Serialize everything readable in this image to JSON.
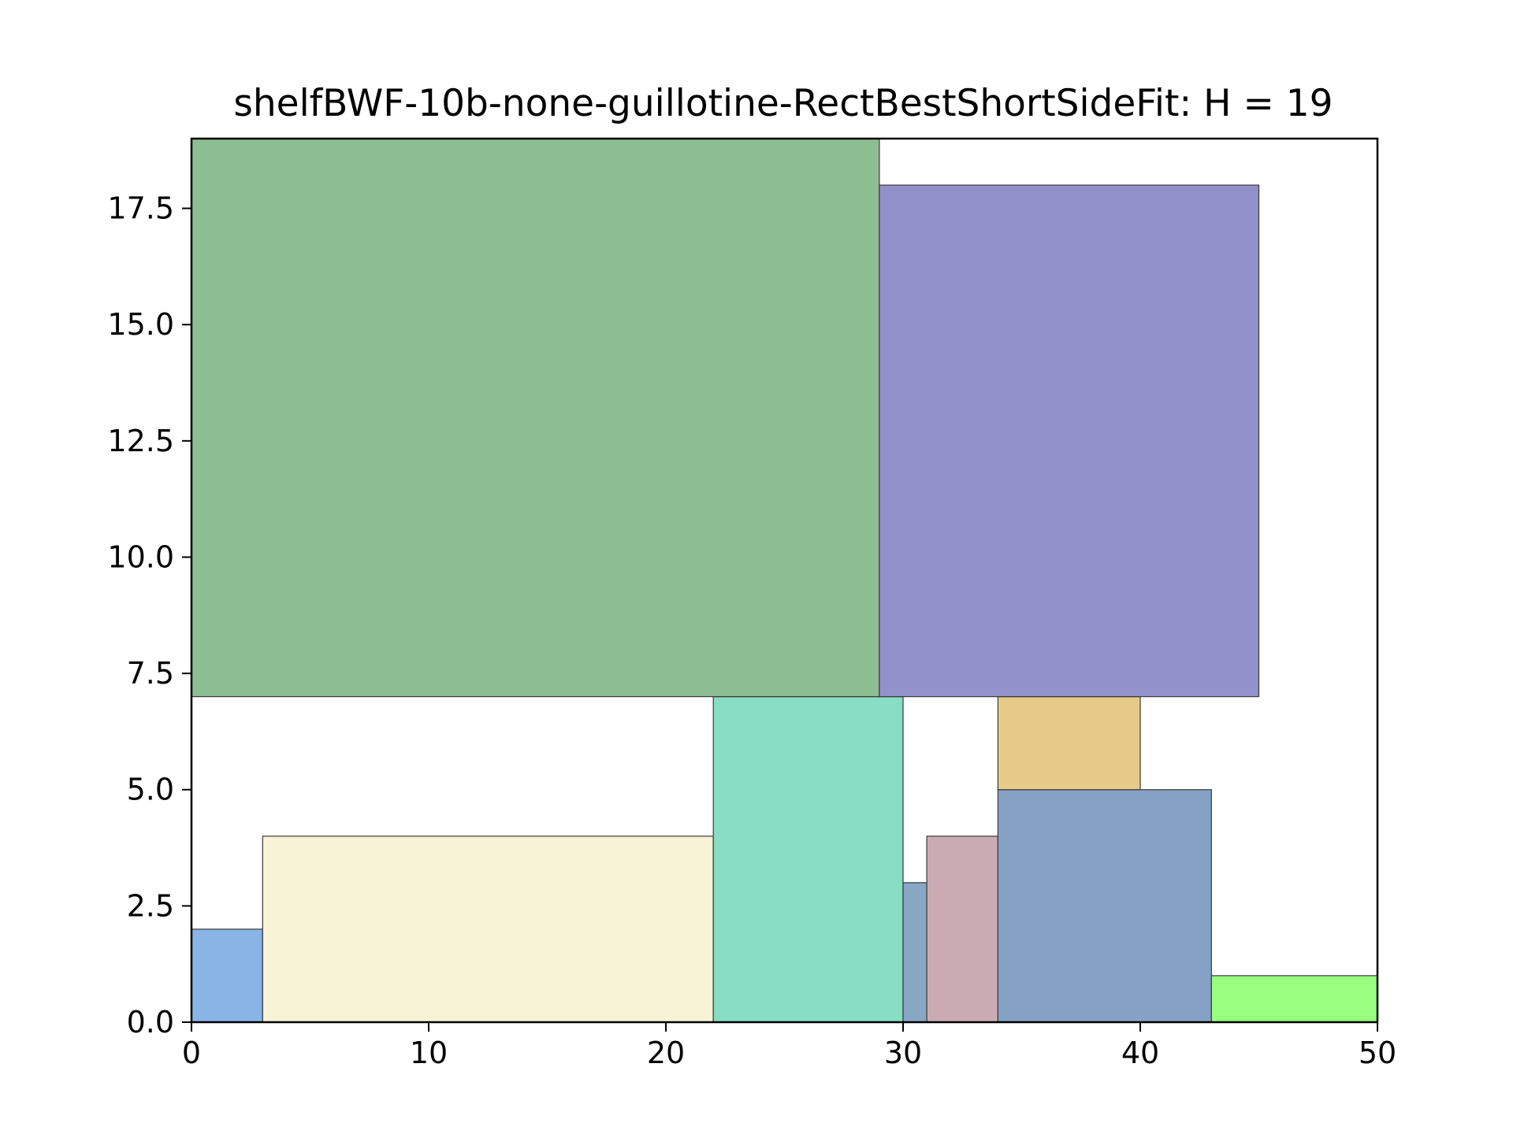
{
  "chart_data": {
    "type": "rectangle-packing",
    "title": "shelfBWF-10b-none-guillotine-RectBestShortSideFit: H = 19",
    "xlim": [
      0,
      50
    ],
    "ylim": [
      0,
      19
    ],
    "xticks": [
      0,
      10,
      20,
      30,
      40,
      50
    ],
    "xtick_labels": [
      "0",
      "10",
      "20",
      "30",
      "40",
      "50"
    ],
    "yticks": [
      0,
      2.5,
      5,
      7.5,
      10,
      12.5,
      15,
      17.5
    ],
    "ytick_labels": [
      "0.0",
      "2.5",
      "5.0",
      "7.5",
      "10.0",
      "12.5",
      "15.0",
      "17.5"
    ],
    "grid": false,
    "rectangles": [
      {
        "x": 0,
        "y": 0,
        "w": 3,
        "h": 2,
        "color": "#89b4e6"
      },
      {
        "x": 3,
        "y": 0,
        "w": 19,
        "h": 4,
        "color": "#f8f2d6"
      },
      {
        "x": 22,
        "y": 0,
        "w": 8,
        "h": 7,
        "color": "#87dec3"
      },
      {
        "x": 30,
        "y": 0,
        "w": 1,
        "h": 3,
        "color": "#87a7c4"
      },
      {
        "x": 31,
        "y": 0,
        "w": 3,
        "h": 4,
        "color": "#caabb4"
      },
      {
        "x": 34,
        "y": 0,
        "w": 9,
        "h": 5,
        "color": "#86a1c6"
      },
      {
        "x": 43,
        "y": 0,
        "w": 7,
        "h": 1,
        "color": "#98ff80"
      },
      {
        "x": 34,
        "y": 5,
        "w": 6,
        "h": 2,
        "color": "#e6cb88"
      },
      {
        "x": 0,
        "y": 7,
        "w": 29,
        "h": 12,
        "color": "#8cbd93"
      },
      {
        "x": 29,
        "y": 7,
        "w": 16,
        "h": 11,
        "color": "#9291ca"
      }
    ]
  }
}
